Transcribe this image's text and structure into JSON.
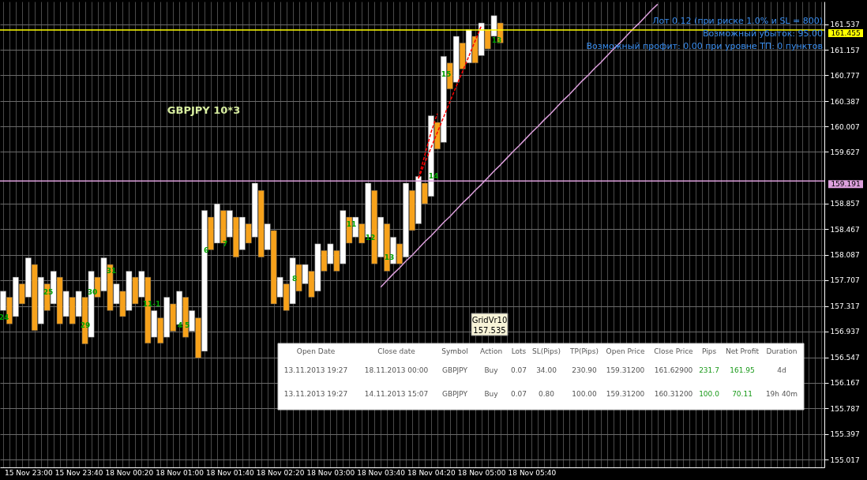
{
  "chart_data": {
    "type": "bar",
    "categories": [
      null,
      null,
      null,
      null,
      "15 Nov 23:00",
      null,
      null,
      null,
      null,
      null,
      null,
      null,
      "15 Nov 23:40",
      null,
      null,
      null,
      null,
      null,
      null,
      null,
      "18 Nov 00:20",
      null,
      null,
      null,
      null,
      null,
      null,
      null,
      "18 Nov 01:00",
      null,
      null,
      null,
      null,
      null,
      null,
      null,
      "18 Nov 01:40",
      null,
      null,
      null,
      null,
      null,
      null,
      null,
      "18 Nov 02:20",
      null,
      null,
      null,
      null,
      null,
      null,
      null,
      "18 Nov 03:00",
      null,
      null,
      null,
      null,
      null,
      null,
      null,
      "18 Nov 03:40",
      null,
      null,
      null,
      null,
      null,
      null,
      null,
      "18 Nov 04:20",
      null,
      null,
      null,
      null,
      null,
      null,
      null,
      "18 Nov 05:00",
      null,
      null,
      null,
      null,
      null,
      null,
      null,
      "18 Nov 05:40",
      null,
      null,
      null,
      null,
      null,
      null,
      null,
      null,
      null,
      null,
      null,
      null,
      null,
      null,
      null,
      null,
      null,
      null,
      null,
      null,
      null,
      null,
      null,
      null,
      null,
      null,
      null,
      null,
      null,
      null,
      null,
      null,
      null,
      null,
      null,
      null,
      null,
      null,
      null,
      null,
      null,
      null,
      null,
      null,
      null,
      null
    ],
    "series": [
      {
        "base": [
          157.25,
          157.05,
          157.16,
          157.35,
          157.45,
          156.95,
          157.05,
          157.25,
          157.35,
          157.05,
          157.16,
          157.05,
          157.16,
          156.75,
          156.85,
          157.45,
          157.54,
          157.25,
          157.35,
          157.16,
          157.25,
          157.35,
          157.45,
          156.76,
          156.85,
          156.76,
          156.85,
          156.94,
          157.04,
          156.85,
          156.94,
          156.54,
          156.64,
          158.16,
          158.26,
          158.26,
          158.35,
          158.05,
          158.16,
          158.26,
          158.35,
          158.05,
          158.16,
          157.35,
          157.45,
          157.25,
          157.35,
          157.54,
          157.65,
          157.45,
          157.54,
          157.84,
          157.95,
          157.84,
          157.95,
          158.26,
          158.35,
          158.26,
          158.35,
          157.95,
          158.05,
          157.84,
          157.95,
          157.95,
          158.05,
          158.45,
          158.55,
          158.85,
          158.96,
          159.67,
          159.77,
          160.57,
          160.67,
          160.87,
          160.96,
          160.96,
          161.07,
          161.17,
          161.36,
          161.26,
          null,
          null,
          null,
          null,
          null,
          null,
          null,
          null,
          null,
          null,
          null,
          null,
          null,
          null,
          null,
          null,
          null,
          null,
          null,
          null,
          null,
          null,
          null,
          null,
          null,
          null,
          null,
          null,
          null,
          null,
          null,
          null,
          null,
          null,
          null,
          null,
          null,
          null,
          null,
          null,
          null,
          null,
          null,
          null,
          null,
          null,
          null,
          null,
          null,
          null,
          null
        ],
        "values": [
          0.29,
          0.4,
          0.59,
          0.3,
          0.59,
          0.99,
          0.7,
          0.4,
          0.49,
          0.7,
          0.38,
          0.4,
          0.38,
          0.7,
          0.99,
          0.3,
          0.5,
          0.69,
          0.3,
          0.38,
          0.59,
          0.4,
          0.39,
          0.99,
          0.4,
          0.38,
          0.6,
          0.41,
          0.5,
          0.6,
          0.31,
          0.6,
          2.11,
          0.49,
          0.59,
          0.49,
          0.4,
          0.6,
          0.49,
          0.29,
          0.81,
          1.0,
          0.39,
          1.1,
          0.3,
          0.4,
          0.69,
          0.4,
          0.29,
          0.39,
          0.71,
          0.31,
          0.3,
          0.31,
          0.8,
          0.39,
          0.3,
          0.29,
          0.81,
          1.1,
          0.6,
          0.71,
          0.4,
          0.3,
          1.11,
          0.6,
          0.71,
          0.31,
          1.21,
          0.4,
          1.29,
          0.39,
          0.69,
          0.39,
          0.5,
          0.4,
          0.49,
          0.29,
          0.31,
          0.3,
          null,
          null,
          null,
          null,
          null,
          null,
          null,
          null,
          null,
          null,
          null,
          null,
          null,
          null,
          null,
          null,
          null,
          null,
          null,
          null,
          null,
          null,
          null,
          null,
          null,
          null,
          null,
          null,
          null,
          null,
          null,
          null,
          null,
          null,
          null,
          null,
          null,
          null,
          null,
          null,
          null,
          null,
          null,
          null,
          null,
          null,
          null,
          null,
          null,
          null,
          null
        ],
        "colors": [
          "#ffffff",
          "#f7a21b",
          "#ffffff",
          "#f7a21b",
          "#ffffff",
          "#f7a21b",
          "#ffffff",
          "#f7a21b",
          "#ffffff",
          "#f7a21b",
          "#ffffff",
          "#f7a21b",
          "#ffffff",
          "#f7a21b",
          "#ffffff",
          "#f7a21b",
          "#ffffff",
          "#f7a21b",
          "#ffffff",
          "#f7a21b",
          "#ffffff",
          "#f7a21b",
          "#ffffff",
          "#f7a21b",
          "#ffffff",
          "#f7a21b",
          "#ffffff",
          "#f7a21b",
          "#ffffff",
          "#f7a21b",
          "#ffffff",
          "#f7a21b",
          "#ffffff",
          "#f7a21b",
          "#ffffff",
          "#f7a21b",
          "#ffffff",
          "#f7a21b",
          "#ffffff",
          "#f7a21b",
          "#ffffff",
          "#f7a21b",
          "#ffffff",
          "#f7a21b",
          "#ffffff",
          "#f7a21b",
          "#ffffff",
          "#f7a21b",
          "#ffffff",
          "#f7a21b",
          "#ffffff",
          "#f7a21b",
          "#ffffff",
          "#f7a21b",
          "#ffffff",
          "#f7a21b",
          "#ffffff",
          "#f7a21b",
          "#ffffff",
          "#f7a21b",
          "#ffffff",
          "#f7a21b",
          "#ffffff",
          "#f7a21b",
          "#ffffff",
          "#f7a21b",
          "#ffffff",
          "#f7a21b",
          "#ffffff",
          "#f7a21b",
          "#ffffff",
          "#f7a21b",
          "#ffffff",
          "#f7a21b",
          "#ffffff",
          "#f7a21b",
          "#ffffff",
          "#f7a21b",
          "#ffffff",
          "#f7a21b",
          null,
          null,
          null,
          null,
          null,
          null,
          null,
          null,
          null,
          null,
          null,
          null,
          null,
          null,
          null,
          null,
          null,
          null,
          null,
          null,
          null,
          null,
          null,
          null,
          null,
          null,
          null,
          null,
          null,
          null,
          null,
          null,
          null,
          null,
          null,
          null,
          null,
          null,
          null,
          null,
          null,
          null,
          null,
          null,
          null,
          null,
          null,
          null,
          null,
          null,
          null
        ]
      },
      {
        "type": "line",
        "color": "#dda0dd",
        "values": [
          null,
          null,
          null,
          null,
          null,
          null,
          null,
          null,
          null,
          null,
          null,
          null,
          null,
          null,
          null,
          null,
          null,
          null,
          null,
          null,
          null,
          null,
          null,
          null,
          null,
          null,
          null,
          null,
          null,
          null,
          null,
          null,
          null,
          null,
          null,
          null,
          null,
          null,
          null,
          null,
          null,
          null,
          null,
          null,
          null,
          null,
          null,
          null,
          null,
          null,
          null,
          null,
          null,
          null,
          null,
          null,
          null,
          null,
          null,
          null,
          157.6,
          157.7,
          157.8,
          157.89,
          157.99,
          158.08,
          158.18,
          158.28,
          158.37,
          158.47,
          158.57,
          158.66,
          158.76,
          158.86,
          158.95,
          159.05,
          159.14,
          159.24,
          159.34,
          159.43,
          159.53,
          159.63,
          159.72,
          159.82,
          159.92,
          160.01,
          160.11,
          160.2,
          160.3,
          160.4,
          160.49,
          160.59,
          160.69,
          160.78,
          160.88,
          160.97,
          161.07,
          161.17,
          161.26,
          161.36,
          161.46,
          161.55,
          161.65,
          161.75,
          161.84,
          null,
          null,
          null,
          null,
          null,
          null,
          null,
          null,
          null,
          null,
          null,
          null,
          null,
          null,
          null,
          null,
          null,
          null,
          null,
          null,
          null,
          null,
          null,
          null,
          null,
          null
        ]
      },
      {
        "type": "line",
        "color": "#ff0000",
        "line_style": "dashed",
        "values": [
          null,
          null,
          null,
          null,
          null,
          null,
          null,
          null,
          null,
          null,
          null,
          null,
          null,
          null,
          null,
          null,
          null,
          null,
          null,
          null,
          null,
          null,
          null,
          null,
          null,
          null,
          null,
          null,
          null,
          null,
          null,
          null,
          null,
          null,
          null,
          null,
          null,
          null,
          null,
          null,
          null,
          null,
          null,
          null,
          null,
          null,
          null,
          null,
          null,
          null,
          null,
          null,
          null,
          null,
          null,
          null,
          null,
          null,
          null,
          null,
          null,
          null,
          null,
          null,
          null,
          null,
          159.23,
          159.58,
          159.92,
          160.2,
          null,
          null,
          null,
          null,
          null,
          null,
          null,
          null,
          null,
          null,
          null,
          null,
          null,
          null,
          null,
          null,
          null,
          null,
          null,
          null,
          null,
          null,
          null,
          null,
          null,
          null,
          null,
          null,
          null,
          null,
          null,
          null,
          null,
          null,
          null,
          null,
          null,
          null,
          null,
          null,
          null,
          null,
          null,
          null,
          null,
          null,
          null,
          null,
          null,
          null,
          null,
          null,
          null,
          null,
          null,
          null,
          null,
          null,
          null,
          null,
          null
        ]
      },
      {
        "type": "line",
        "color": "#ff0000",
        "line_style": "dashed",
        "values": [
          null,
          null,
          null,
          null,
          null,
          null,
          null,
          null,
          null,
          null,
          null,
          null,
          null,
          null,
          null,
          null,
          null,
          null,
          null,
          null,
          null,
          null,
          null,
          null,
          null,
          null,
          null,
          null,
          null,
          null,
          null,
          null,
          null,
          null,
          null,
          null,
          null,
          null,
          null,
          null,
          null,
          null,
          null,
          null,
          null,
          null,
          null,
          null,
          null,
          null,
          null,
          null,
          null,
          null,
          null,
          null,
          null,
          null,
          null,
          null,
          null,
          null,
          null,
          null,
          null,
          null,
          159.23,
          159.46,
          159.69,
          159.92,
          160.15,
          160.38,
          160.61,
          160.83,
          161.06,
          161.29,
          161.52,
          null,
          null,
          null,
          null,
          null,
          null,
          null,
          null,
          null,
          null,
          null,
          null,
          null,
          null,
          null,
          null,
          null,
          null,
          null,
          null,
          null,
          null,
          null,
          null,
          null,
          null,
          null,
          null,
          null,
          null,
          null,
          null,
          null,
          null,
          null,
          null,
          null,
          null,
          null,
          null,
          null,
          null,
          null,
          null,
          null,
          null,
          null,
          null,
          null,
          null,
          null,
          null,
          null,
          null
        ]
      }
    ],
    "ylim": [
      154.9,
      161.88
    ],
    "yticks": [
      161.537,
      161.157,
      160.777,
      160.387,
      160.007,
      159.627,
      158.857,
      158.467,
      158.087,
      157.707,
      157.317,
      156.937,
      156.547,
      156.167,
      155.787,
      155.397,
      155.017
    ],
    "grid": true,
    "ref_lines": [
      {
        "axis": "y",
        "value": 161.455,
        "label": "161.455",
        "color": "#ffff00"
      },
      {
        "axis": "y",
        "value": 159.191,
        "label": "159.191",
        "color": "#dda0dd"
      }
    ],
    "annotations": [
      "GBPJPY 10*3",
      "Лот 0.12 (при риске 1.0% и SL = 800)",
      "Возможный убыток: 95.00",
      "Возможный профит: 0.00 при уровне ТП: 0 пунктов",
      "GridVr10",
      "157.535",
      "Open Date",
      "Close date",
      "Symbol",
      "Action",
      "Lots",
      "SL(Pips)",
      "TP(Pips)",
      "Open Price",
      "Close Price",
      "Pips",
      "Net Profit",
      "Duration",
      "13.11.2013 19:27",
      "18.11.2013 00:00",
      "GBPJPY",
      "Buy",
      "0.07",
      "34.00",
      "230.90",
      "159.31200",
      "161.62900",
      "231.7",
      "161.95",
      "4d",
      "13.11.2013 19:27",
      "14.11.2013 15:07",
      "GBPJPY",
      "Buy",
      "0.07",
      "0.80",
      "100.00",
      "159.31200",
      "160.31200",
      "100.0",
      "70.11",
      "19h 40m",
      "24",
      "25",
      "29",
      "30",
      "31",
      "11-1",
      "4",
      "5",
      "6",
      "7",
      "8",
      "11",
      "12",
      "13",
      "14",
      "15",
      "13"
    ]
  }
}
